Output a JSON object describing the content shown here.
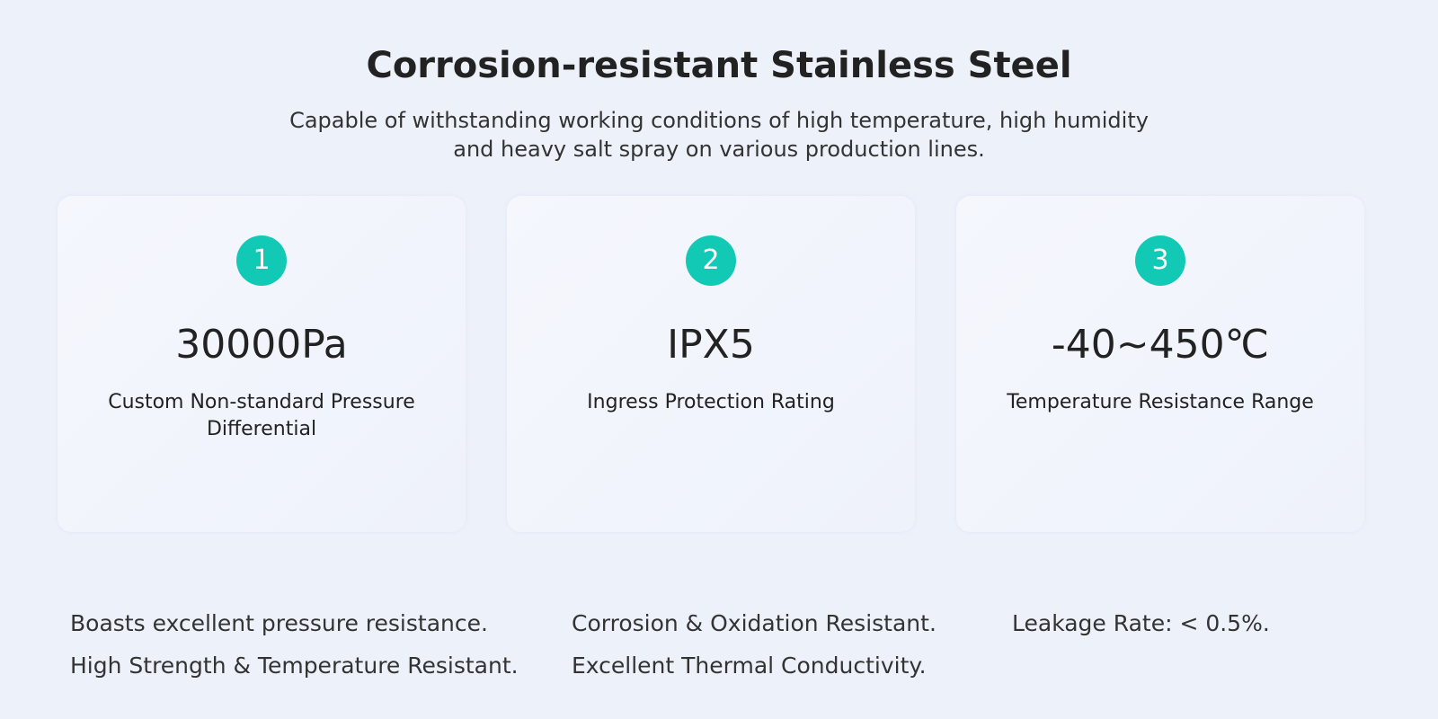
{
  "header": {
    "title": "Corrosion-resistant Stainless Steel",
    "subtitle": [
      "Capable of withstanding working conditions of high temperature, high humidity",
      "and heavy salt spray on various production lines."
    ]
  },
  "cards": [
    {
      "number": "1",
      "value": "30000Pa",
      "label": [
        "Custom Non-standard Pressure",
        "Differential"
      ]
    },
    {
      "number": "2",
      "value": "IPX5",
      "label": [
        "Ingress Protection Rating"
      ]
    },
    {
      "number": "3",
      "value": "-40~450℃",
      "label": [
        "Temperature Resistance Range"
      ]
    }
  ],
  "features": [
    [
      "Boasts excellent pressure resistance.",
      "High Strength & Temperature Resistant."
    ],
    [
      "Corrosion & Oxidation Resistant.",
      "Excellent Thermal Conductivity."
    ],
    [
      "Leakage Rate: < 0.5%."
    ]
  ]
}
